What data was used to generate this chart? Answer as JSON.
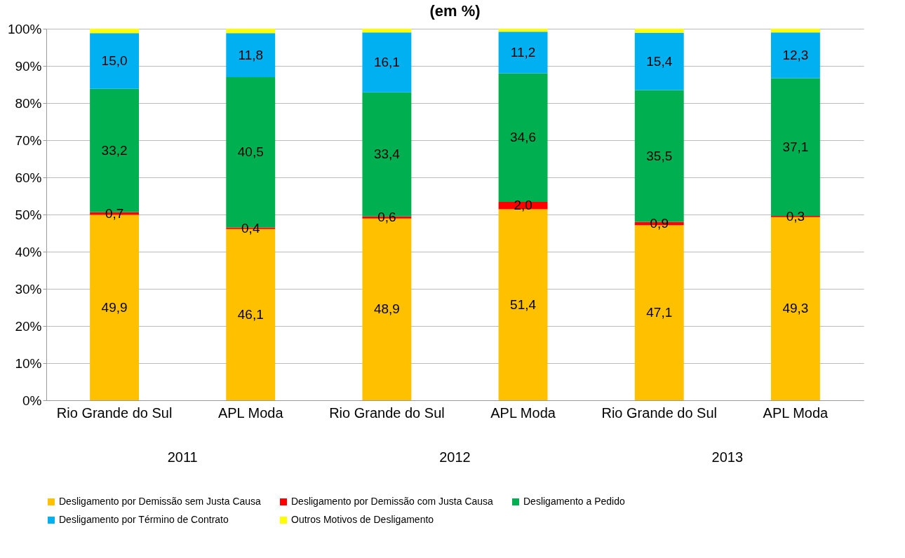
{
  "chart_data": {
    "type": "bar",
    "title": "(em %)",
    "stacked": true,
    "categories": [
      "Rio Grande do Sul",
      "APL Moda",
      "Rio Grande do Sul",
      "APL Moda",
      "Rio Grande do Sul",
      "APL Moda"
    ],
    "annotations": [
      "2011",
      "2012",
      "2013"
    ],
    "series": [
      {
        "name": "Desligamento por Demissão sem Justa Causa",
        "color": "#ffc000",
        "values": [
          49.9,
          46.1,
          48.9,
          51.4,
          47.1,
          49.3
        ],
        "value_labels": [
          "49,9",
          "46,1",
          "48,9",
          "51,4",
          "47,1",
          "49,3"
        ]
      },
      {
        "name": "Desligamento por Demissão com Justa Causa",
        "color": "#ff0000",
        "values": [
          0.7,
          0.4,
          0.6,
          2.0,
          0.9,
          0.3
        ],
        "value_labels": [
          "0,7",
          "0,4",
          "0,6",
          "2,0",
          "0,9",
          "0,3"
        ]
      },
      {
        "name": "Desligamento a Pedido",
        "color": "#00b050",
        "values": [
          33.2,
          40.5,
          33.4,
          34.6,
          35.5,
          37.1
        ],
        "value_labels": [
          "33,2",
          "40,5",
          "33,4",
          "34,6",
          "35,5",
          "37,1"
        ]
      },
      {
        "name": "Desligamento por Término de Contrato",
        "color": "#00b0f0",
        "values": [
          15.0,
          11.8,
          16.1,
          11.2,
          15.4,
          12.3
        ],
        "value_labels": [
          "15,0",
          "11,8",
          "16,1",
          "11,2",
          "15,4",
          "12,3"
        ]
      },
      {
        "name": "Outros Motivos de Desligamento",
        "color": "#ffff00",
        "values": [
          1.2,
          1.2,
          1.0,
          0.8,
          1.1,
          1.0
        ]
      }
    ],
    "ylim": [
      0,
      100
    ],
    "yticks": [
      {
        "value": 0,
        "label": "0%"
      },
      {
        "value": 10,
        "label": "10%"
      },
      {
        "value": 20,
        "label": "20%"
      },
      {
        "value": 30,
        "label": "30%"
      },
      {
        "value": 40,
        "label": "40%"
      },
      {
        "value": 50,
        "label": "50%"
      },
      {
        "value": 60,
        "label": "60%"
      },
      {
        "value": 70,
        "label": "70%"
      },
      {
        "value": 80,
        "label": "80%"
      },
      {
        "value": 90,
        "label": "90%"
      },
      {
        "value": 100,
        "label": "100%"
      }
    ],
    "grid": "y",
    "legend": "bottom"
  }
}
